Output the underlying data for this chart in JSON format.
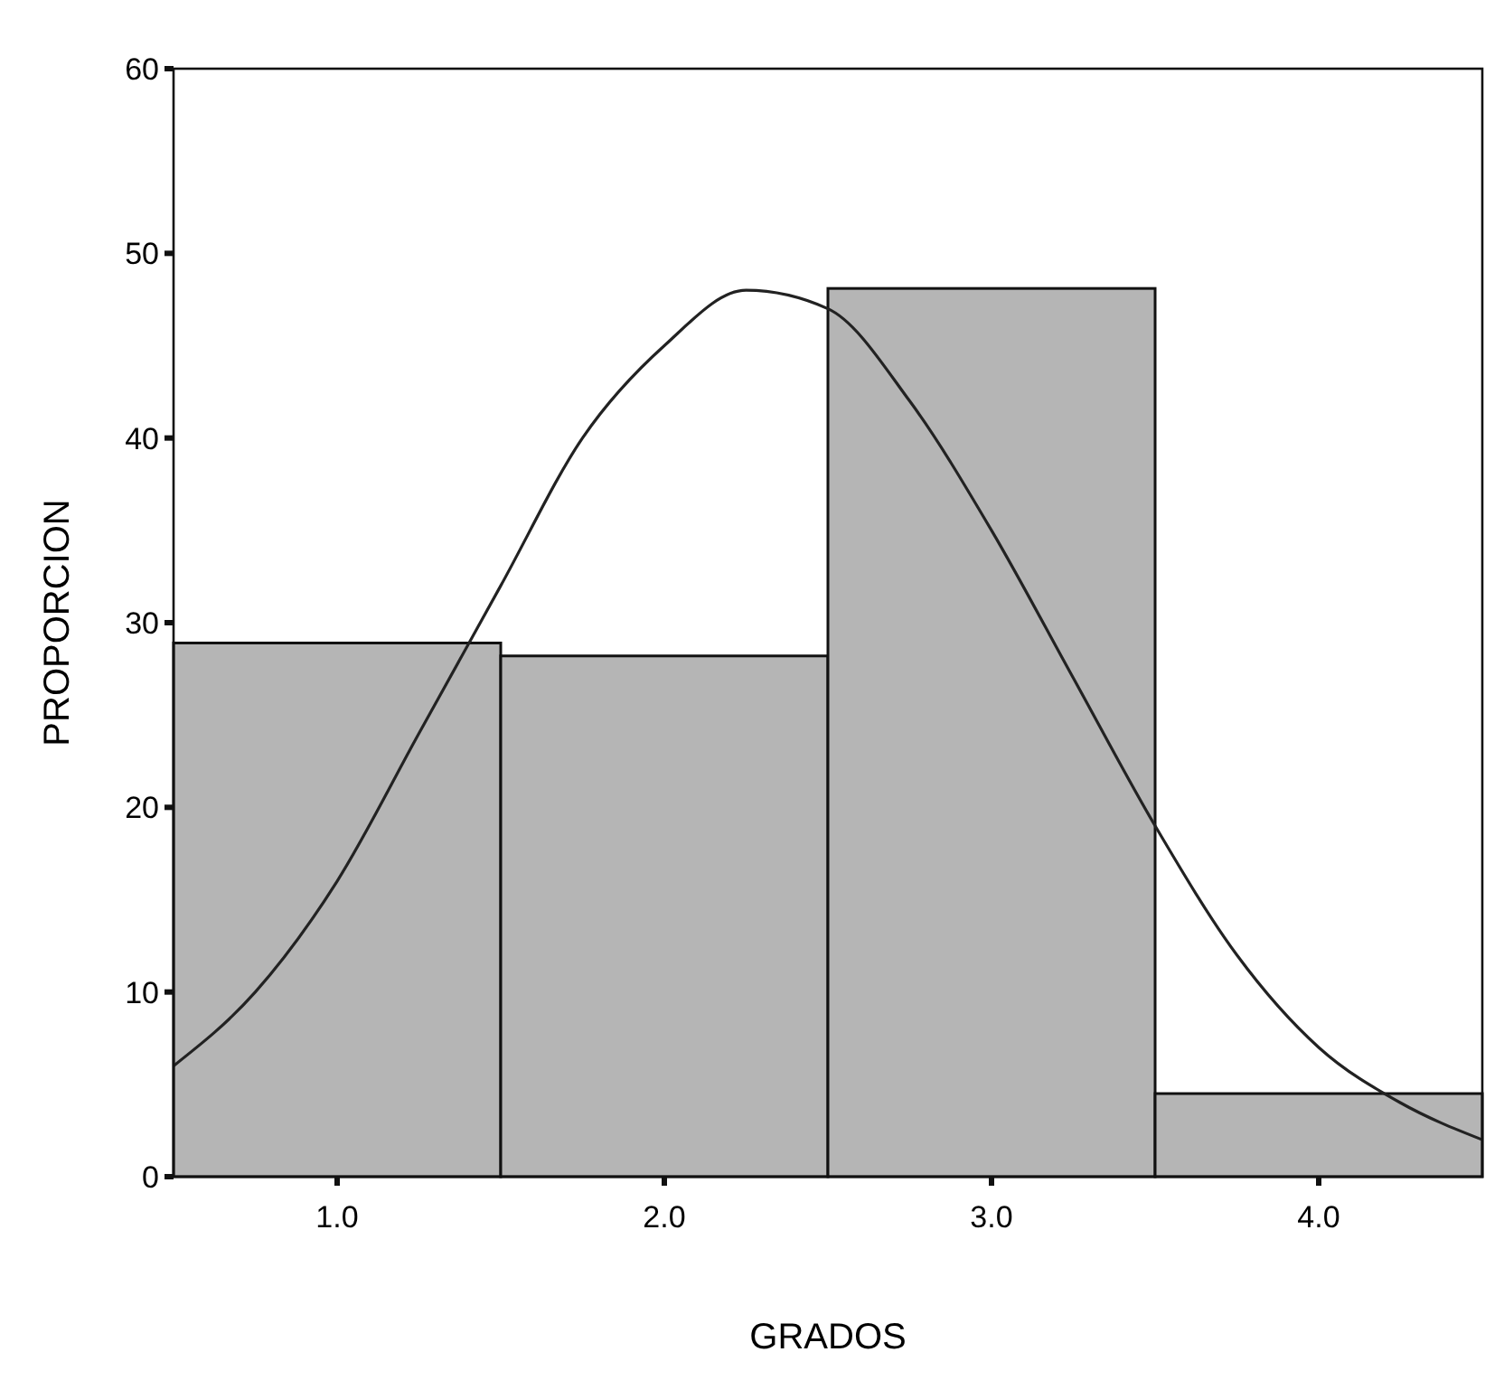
{
  "chart_data": {
    "type": "histogram",
    "xlabel": "GRADOS",
    "ylabel": "PROPORCION",
    "bins": [
      0.5,
      1.5,
      2.5,
      3.5,
      4.5
    ],
    "values": [
      28.9,
      28.2,
      48.1,
      4.5
    ],
    "color": "#b5b5b5",
    "series": [
      {
        "type": "line",
        "color": "#222222",
        "x": [
          0.5,
          0.75,
          1,
          1.25,
          1.5,
          1.75,
          2,
          2.25,
          2.5,
          2.75,
          3,
          3.25,
          3.5,
          3.75,
          4,
          4.25,
          4.5
        ],
        "values": [
          6,
          10,
          16,
          24,
          32,
          40,
          45,
          48,
          47,
          42,
          35,
          27,
          19,
          12,
          7,
          4,
          2
        ]
      }
    ],
    "xlim": [
      0.5,
      4.5
    ],
    "xticks": [
      {
        "value": 1,
        "label": "1.0"
      },
      {
        "value": 2,
        "label": "2.0"
      },
      {
        "value": 3,
        "label": "3.0"
      },
      {
        "value": 4,
        "label": "4.0"
      }
    ],
    "ylim": [
      0,
      60
    ],
    "yticks": [
      0,
      10,
      20,
      30,
      40,
      50,
      60
    ],
    "grid": false,
    "marker": "none",
    "line_style": "solid"
  }
}
